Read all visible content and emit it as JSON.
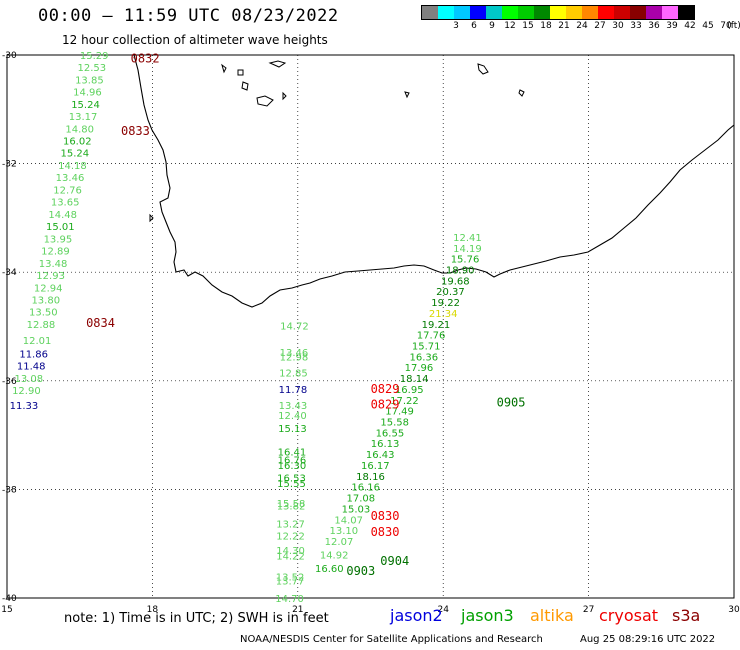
{
  "header": {
    "title": "00:00 — 11:59 UTC 08/23/2022",
    "subtitle": "12 hour collection of altimeter wave heights"
  },
  "legend": {
    "unit": "(ft)",
    "levels": [
      {
        "label": "",
        "color": "#808080"
      },
      {
        "label": "3",
        "color": "#00ffff"
      },
      {
        "label": "6",
        "color": "#00c8ff"
      },
      {
        "label": "9",
        "color": "#0000ff"
      },
      {
        "label": "12",
        "color": "#00c8c8"
      },
      {
        "label": "15",
        "color": "#00ff00"
      },
      {
        "label": "18",
        "color": "#00cc00"
      },
      {
        "label": "21",
        "color": "#008800"
      },
      {
        "label": "24",
        "color": "#ffff00"
      },
      {
        "label": "27",
        "color": "#ffcc00"
      },
      {
        "label": "30",
        "color": "#ff8800"
      },
      {
        "label": "33",
        "color": "#ff0000"
      },
      {
        "label": "36",
        "color": "#cc0000"
      },
      {
        "label": "39",
        "color": "#880000"
      },
      {
        "label": "42",
        "color": "#aa00aa"
      },
      {
        "label": "45",
        "color": "#ff66ff"
      },
      {
        "label": "70",
        "color": "#000000"
      }
    ]
  },
  "axes": {
    "lon_ticks": [
      15,
      18,
      21,
      24,
      27,
      30
    ],
    "lat_ticks": [
      -30,
      -32,
      -34,
      -36,
      -38,
      -40
    ],
    "lon_range": [
      15,
      30
    ],
    "lat_range": [
      -40,
      -30
    ]
  },
  "colors": {
    "c12": "#00008b",
    "c13": "#5ed25e",
    "c15": "#1aaa1a",
    "c18": "#007a00",
    "c21": "#d8d800",
    "time_dark": "#8b0000",
    "time_red": "#ee0000",
    "time_green": "#007000"
  },
  "observations": [
    {
      "lon": 16.8,
      "lat": -30.0,
      "v": "15.29",
      "c": "c13"
    },
    {
      "lon": 16.75,
      "lat": -30.22,
      "v": "12.53",
      "c": "c13"
    },
    {
      "lon": 16.7,
      "lat": -30.45,
      "v": "13.85",
      "c": "c13"
    },
    {
      "lon": 16.66,
      "lat": -30.67,
      "v": "14.96",
      "c": "c13"
    },
    {
      "lon": 16.62,
      "lat": -30.9,
      "v": "15.24",
      "c": "c15"
    },
    {
      "lon": 16.57,
      "lat": -31.12,
      "v": "13.17",
      "c": "c13"
    },
    {
      "lon": 16.5,
      "lat": -31.35,
      "v": "14.80",
      "c": "c13"
    },
    {
      "lon": 16.45,
      "lat": -31.57,
      "v": "16.02",
      "c": "c15"
    },
    {
      "lon": 16.4,
      "lat": -31.8,
      "v": "15.24",
      "c": "c15"
    },
    {
      "lon": 16.35,
      "lat": -32.03,
      "v": "14.18",
      "c": "c13"
    },
    {
      "lon": 16.3,
      "lat": -32.25,
      "v": "13.46",
      "c": "c13"
    },
    {
      "lon": 16.25,
      "lat": -32.48,
      "v": "12.76",
      "c": "c13"
    },
    {
      "lon": 16.2,
      "lat": -32.7,
      "v": "13.65",
      "c": "c13"
    },
    {
      "lon": 16.15,
      "lat": -32.93,
      "v": "14.48",
      "c": "c13"
    },
    {
      "lon": 16.1,
      "lat": -33.15,
      "v": "15.01",
      "c": "c15"
    },
    {
      "lon": 16.05,
      "lat": -33.38,
      "v": "13.95",
      "c": "c13"
    },
    {
      "lon": 16.0,
      "lat": -33.6,
      "v": "12.89",
      "c": "c13"
    },
    {
      "lon": 15.95,
      "lat": -33.83,
      "v": "13.48",
      "c": "c13"
    },
    {
      "lon": 15.9,
      "lat": -34.05,
      "v": "12.93",
      "c": "c13"
    },
    {
      "lon": 15.85,
      "lat": -34.28,
      "v": "12.94",
      "c": "c13"
    },
    {
      "lon": 15.8,
      "lat": -34.5,
      "v": "13.80",
      "c": "c13"
    },
    {
      "lon": 15.75,
      "lat": -34.72,
      "v": "13.50",
      "c": "c13"
    },
    {
      "lon": 15.7,
      "lat": -34.95,
      "v": "12.88",
      "c": "c13"
    },
    {
      "lon": 15.62,
      "lat": -35.25,
      "v": "12.01",
      "c": "c13"
    },
    {
      "lon": 15.55,
      "lat": -35.5,
      "v": "11.86",
      "c": "c12"
    },
    {
      "lon": 15.5,
      "lat": -35.72,
      "v": "11.48",
      "c": "c12"
    },
    {
      "lon": 15.45,
      "lat": -35.95,
      "v": "13.08",
      "c": "c13"
    },
    {
      "lon": 15.4,
      "lat": -36.17,
      "v": "12.90",
      "c": "c13"
    },
    {
      "lon": 15.35,
      "lat": -36.45,
      "v": "11.33",
      "c": "c12"
    },
    {
      "lon": 20.93,
      "lat": -34.98,
      "v": "14.72",
      "c": "c13"
    },
    {
      "lon": 20.92,
      "lat": -35.47,
      "v": "13.46",
      "c": "c13"
    },
    {
      "lon": 20.92,
      "lat": -35.55,
      "v": "12.98",
      "c": "c13"
    },
    {
      "lon": 20.91,
      "lat": -35.85,
      "v": "12.85",
      "c": "c13"
    },
    {
      "lon": 20.9,
      "lat": -36.15,
      "v": "11.78",
      "c": "c12"
    },
    {
      "lon": 20.9,
      "lat": -36.45,
      "v": "13.43",
      "c": "c13"
    },
    {
      "lon": 20.89,
      "lat": -36.63,
      "v": "12.40",
      "c": "c13"
    },
    {
      "lon": 20.89,
      "lat": -36.87,
      "v": "15.13",
      "c": "c15"
    },
    {
      "lon": 20.88,
      "lat": -37.3,
      "v": "16.41",
      "c": "c15"
    },
    {
      "lon": 20.88,
      "lat": -37.45,
      "v": "16.76",
      "c": "c15"
    },
    {
      "lon": 20.88,
      "lat": -37.55,
      "v": "16.30",
      "c": "c15"
    },
    {
      "lon": 20.87,
      "lat": -37.78,
      "v": "16.53",
      "c": "c15"
    },
    {
      "lon": 20.87,
      "lat": -37.88,
      "v": "15.55",
      "c": "c15"
    },
    {
      "lon": 20.86,
      "lat": -38.25,
      "v": "15.58",
      "c": "c13"
    },
    {
      "lon": 20.86,
      "lat": -38.3,
      "v": "13.82",
      "c": "c13"
    },
    {
      "lon": 20.85,
      "lat": -38.63,
      "v": "13.27",
      "c": "c13"
    },
    {
      "lon": 20.85,
      "lat": -38.85,
      "v": "12.22",
      "c": "c13"
    },
    {
      "lon": 20.85,
      "lat": -39.12,
      "v": "14.30",
      "c": "c13"
    },
    {
      "lon": 20.85,
      "lat": -39.22,
      "v": "14.22",
      "c": "c13"
    },
    {
      "lon": 20.84,
      "lat": -39.6,
      "v": "13.52",
      "c": "c13"
    },
    {
      "lon": 20.84,
      "lat": -39.68,
      "v": "13.77",
      "c": "c13"
    },
    {
      "lon": 20.83,
      "lat": -40.0,
      "v": "14.70",
      "c": "c13"
    },
    {
      "lon": 24.5,
      "lat": -33.35,
      "v": "12.41",
      "c": "c13"
    },
    {
      "lon": 24.5,
      "lat": -33.55,
      "v": "14.19",
      "c": "c13"
    },
    {
      "lon": 24.45,
      "lat": -33.75,
      "v": "15.76",
      "c": "c15"
    },
    {
      "lon": 24.35,
      "lat": -33.95,
      "v": "18.90",
      "c": "c18"
    },
    {
      "lon": 24.25,
      "lat": -34.15,
      "v": "19.68",
      "c": "c18"
    },
    {
      "lon": 24.15,
      "lat": -34.35,
      "v": "20.37",
      "c": "c18"
    },
    {
      "lon": 24.05,
      "lat": -34.55,
      "v": "19.22",
      "c": "c18"
    },
    {
      "lon": 24.0,
      "lat": -34.75,
      "v": "21.34",
      "c": "c21"
    },
    {
      "lon": 23.85,
      "lat": -34.95,
      "v": "19.21",
      "c": "c18"
    },
    {
      "lon": 23.75,
      "lat": -35.15,
      "v": "17.76",
      "c": "c15"
    },
    {
      "lon": 23.65,
      "lat": -35.35,
      "v": "15.71",
      "c": "c15"
    },
    {
      "lon": 23.6,
      "lat": -35.55,
      "v": "16.36",
      "c": "c15"
    },
    {
      "lon": 23.5,
      "lat": -35.75,
      "v": "17.96",
      "c": "c15"
    },
    {
      "lon": 23.4,
      "lat": -35.95,
      "v": "18.14",
      "c": "c18"
    },
    {
      "lon": 23.3,
      "lat": -36.15,
      "v": "16.95",
      "c": "c15"
    },
    {
      "lon": 23.2,
      "lat": -36.35,
      "v": "17.22",
      "c": "c15"
    },
    {
      "lon": 23.1,
      "lat": -36.55,
      "v": "17.49",
      "c": "c15"
    },
    {
      "lon": 23.0,
      "lat": -36.75,
      "v": "15.58",
      "c": "c15"
    },
    {
      "lon": 22.9,
      "lat": -36.95,
      "v": "16.55",
      "c": "c15"
    },
    {
      "lon": 22.8,
      "lat": -37.15,
      "v": "16.13",
      "c": "c15"
    },
    {
      "lon": 22.7,
      "lat": -37.35,
      "v": "16.43",
      "c": "c15"
    },
    {
      "lon": 22.6,
      "lat": -37.55,
      "v": "16.17",
      "c": "c15"
    },
    {
      "lon": 22.5,
      "lat": -37.75,
      "v": "18.16",
      "c": "c18"
    },
    {
      "lon": 22.4,
      "lat": -37.95,
      "v": "16.16",
      "c": "c15"
    },
    {
      "lon": 22.3,
      "lat": -38.15,
      "v": "17.08",
      "c": "c15"
    },
    {
      "lon": 22.2,
      "lat": -38.35,
      "v": "15.03",
      "c": "c15"
    },
    {
      "lon": 22.05,
      "lat": -38.55,
      "v": "14.07",
      "c": "c13"
    },
    {
      "lon": 21.95,
      "lat": -38.75,
      "v": "13.10",
      "c": "c13"
    },
    {
      "lon": 21.85,
      "lat": -38.95,
      "v": "12.07",
      "c": "c13"
    },
    {
      "lon": 21.75,
      "lat": -39.2,
      "v": "14.92",
      "c": "c13"
    },
    {
      "lon": 21.65,
      "lat": -39.45,
      "v": "16.60",
      "c": "c15"
    }
  ],
  "time_labels": [
    {
      "lon": 17.85,
      "lat": -30.05,
      "t": "0832",
      "c": "time_dark"
    },
    {
      "lon": 17.65,
      "lat": -31.38,
      "t": "0833",
      "c": "time_dark"
    },
    {
      "lon": 16.93,
      "lat": -34.92,
      "t": "0834",
      "c": "time_dark"
    },
    {
      "lon": 22.8,
      "lat": -36.13,
      "t": "0829",
      "c": "time_red"
    },
    {
      "lon": 22.8,
      "lat": -36.42,
      "t": "0829",
      "c": "time_red"
    },
    {
      "lon": 22.8,
      "lat": -38.47,
      "t": "0830",
      "c": "time_red"
    },
    {
      "lon": 22.8,
      "lat": -38.77,
      "t": "0830",
      "c": "time_red"
    },
    {
      "lon": 25.4,
      "lat": -36.38,
      "t": "0905",
      "c": "time_green"
    },
    {
      "lon": 23.0,
      "lat": -39.3,
      "t": "0904",
      "c": "time_green"
    },
    {
      "lon": 22.3,
      "lat": -39.48,
      "t": "0903",
      "c": "time_green"
    }
  ],
  "footer": {
    "note": "note:  1) Time is in UTC;  2) SWH is in feet",
    "satellites": [
      {
        "name": "jason2",
        "color": "#0000dd"
      },
      {
        "name": "jason3",
        "color": "#00a000"
      },
      {
        "name": "altika",
        "color": "#ff9900"
      },
      {
        "name": "cryosat",
        "color": "#ee0000"
      },
      {
        "name": "s3a",
        "color": "#8b0000"
      }
    ],
    "credit": "NOAA/NESDIS Center for Satellite Applications and Research",
    "timestamp": "Aug 25 08:29:16 UTC 2022"
  }
}
